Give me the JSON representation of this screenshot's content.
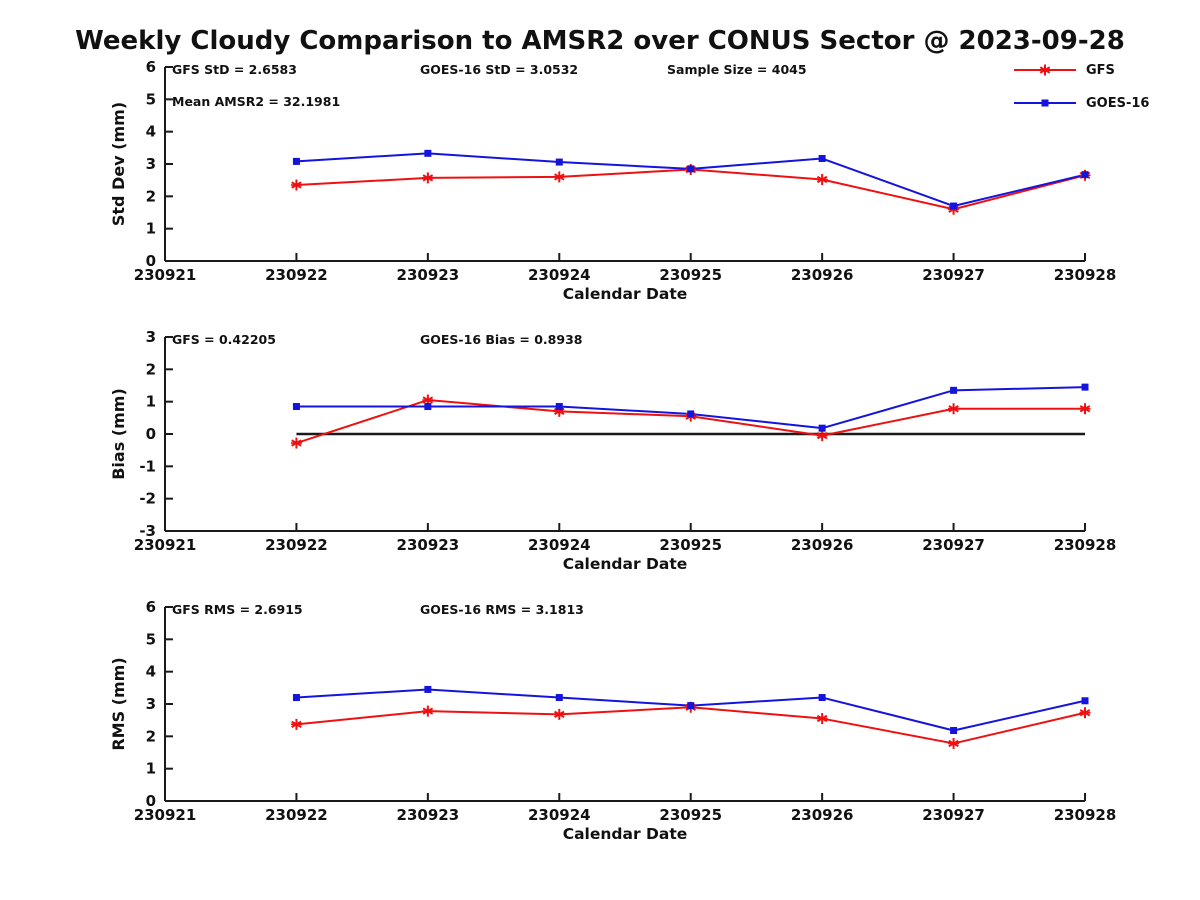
{
  "title": "Weekly Cloudy Comparison to AMSR2 over CONUS Sector @ 2023-09-28",
  "colors": {
    "gfs": "#ee1111",
    "goes16": "#1414dd",
    "axis": "#1a1a1a",
    "zero_line": "#1a1a1a"
  },
  "legend": {
    "items": [
      {
        "label": "GFS",
        "color": "#ee1111",
        "marker": "asterisk"
      },
      {
        "label": "GOES-16",
        "color": "#1414dd",
        "marker": "square"
      }
    ]
  },
  "chart_data": [
    {
      "type": "line",
      "name": "stddev",
      "ylabel": "Std Dev (mm)",
      "xlabel": "Calendar Date",
      "ylim": [
        0,
        6
      ],
      "yticks": [
        0,
        1,
        2,
        3,
        4,
        5,
        6
      ],
      "x_tick_labels": [
        "230921",
        "230922",
        "230923",
        "230924",
        "230925",
        "230926",
        "230927",
        "230928"
      ],
      "categories": [
        "230922",
        "230923",
        "230924",
        "230925",
        "230926",
        "230927",
        "230928"
      ],
      "series": [
        {
          "name": "GFS",
          "color": "#ee1111",
          "marker": "asterisk",
          "values": [
            2.35,
            2.57,
            2.6,
            2.83,
            2.52,
            1.6,
            2.65
          ]
        },
        {
          "name": "GOES-16",
          "color": "#1414dd",
          "marker": "square",
          "values": [
            3.08,
            3.33,
            3.06,
            2.85,
            3.17,
            1.7,
            2.67
          ]
        }
      ],
      "zero_line": false,
      "annotations": [
        {
          "text": "GFS StD = 2.6583",
          "x": 172,
          "row": 0
        },
        {
          "text": "GOES-16 StD = 3.0532",
          "x": 420,
          "row": 0
        },
        {
          "text": "Sample Size = 4045",
          "x": 667,
          "row": 0
        },
        {
          "text": "Mean AMSR2 = 32.1981",
          "x": 172,
          "row": 1
        }
      ],
      "legend_position": "top-right",
      "grid": false
    },
    {
      "type": "line",
      "name": "bias",
      "ylabel": "Bias (mm)",
      "xlabel": "Calendar Date",
      "ylim": [
        -3,
        3
      ],
      "yticks": [
        -3,
        -2,
        -1,
        0,
        1,
        2,
        3
      ],
      "x_tick_labels": [
        "230921",
        "230922",
        "230923",
        "230924",
        "230925",
        "230926",
        "230927",
        "230928"
      ],
      "categories": [
        "230922",
        "230923",
        "230924",
        "230925",
        "230926",
        "230927",
        "230928"
      ],
      "series": [
        {
          "name": "GFS",
          "color": "#ee1111",
          "marker": "asterisk",
          "values": [
            -0.28,
            1.05,
            0.7,
            0.55,
            -0.05,
            0.78,
            0.78
          ]
        },
        {
          "name": "GOES-16",
          "color": "#1414dd",
          "marker": "square",
          "values": [
            0.85,
            0.85,
            0.85,
            0.62,
            0.18,
            1.35,
            1.45
          ]
        }
      ],
      "zero_line": true,
      "annotations": [
        {
          "text": "GFS = 0.42205",
          "x": 172,
          "row": 0
        },
        {
          "text": "GOES-16 Bias  = 0.8938",
          "x": 420,
          "row": 0
        }
      ],
      "grid": false
    },
    {
      "type": "line",
      "name": "rms",
      "ylabel": "RMS (mm)",
      "xlabel": "Calendar Date",
      "ylim": [
        0,
        6
      ],
      "yticks": [
        0,
        1,
        2,
        3,
        4,
        5,
        6
      ],
      "x_tick_labels": [
        "230921",
        "230922",
        "230923",
        "230924",
        "230925",
        "230926",
        "230927",
        "230928"
      ],
      "categories": [
        "230922",
        "230923",
        "230924",
        "230925",
        "230926",
        "230927",
        "230928"
      ],
      "series": [
        {
          "name": "GFS",
          "color": "#ee1111",
          "marker": "asterisk",
          "values": [
            2.37,
            2.78,
            2.68,
            2.9,
            2.55,
            1.78,
            2.73
          ]
        },
        {
          "name": "GOES-16",
          "color": "#1414dd",
          "marker": "square",
          "values": [
            3.2,
            3.45,
            3.2,
            2.95,
            3.2,
            2.18,
            3.1
          ]
        }
      ],
      "zero_line": false,
      "annotations": [
        {
          "text": "GFS RMS = 2.6915",
          "x": 172,
          "row": 0
        },
        {
          "text": "GOES-16 RMS = 3.1813",
          "x": 420,
          "row": 0
        }
      ],
      "grid": false
    }
  ]
}
